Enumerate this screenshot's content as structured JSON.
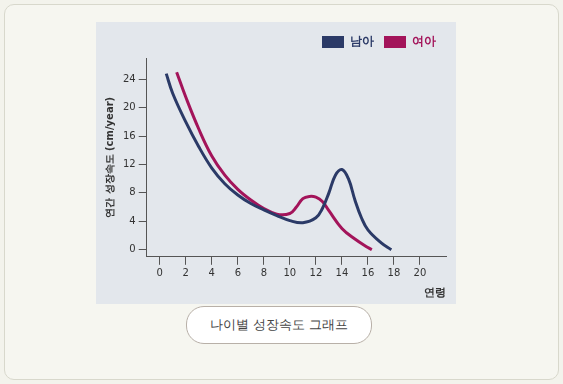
{
  "chart_data": {
    "type": "line",
    "caption": "나이별 성장속도 그래프",
    "x_label": "연령",
    "y_label": "연간 성장속도 (cm/year)",
    "xlim": [
      -1,
      22
    ],
    "xticks": [
      0,
      2,
      4,
      6,
      8,
      10,
      12,
      14,
      16,
      18,
      20
    ],
    "ylim": [
      -1,
      27
    ],
    "yticks": [
      0,
      4,
      8,
      12,
      16,
      20,
      24
    ],
    "grid": false,
    "legend": "top right",
    "series": [
      {
        "name": "남아",
        "color": "#2b3a67",
        "x": [
          0.5,
          1,
          2,
          3,
          4,
          5,
          6,
          7,
          8,
          9,
          10,
          11,
          12,
          12.5,
          13,
          13.5,
          14,
          14.5,
          15,
          15.5,
          16,
          17,
          17.8
        ],
        "values": [
          24.8,
          22,
          18,
          14.5,
          11.5,
          9.3,
          7.7,
          6.5,
          5.6,
          4.8,
          4.1,
          3.8,
          4.5,
          5.8,
          8,
          10.5,
          11.3,
          10,
          7,
          4.5,
          2.8,
          1,
          0
        ]
      },
      {
        "name": "여아",
        "color": "#a3145a",
        "x": [
          1.3,
          2,
          3,
          4,
          5,
          6,
          7,
          8,
          9,
          10,
          10.5,
          11,
          11.5,
          12,
          12.5,
          13,
          14,
          15,
          16,
          16.3
        ],
        "values": [
          25,
          21.5,
          17,
          13.2,
          10.5,
          8.5,
          7,
          5.8,
          5,
          5.1,
          6,
          7.2,
          7.5,
          7.4,
          6.8,
          5.5,
          3,
          1.5,
          0.3,
          0
        ]
      }
    ]
  }
}
